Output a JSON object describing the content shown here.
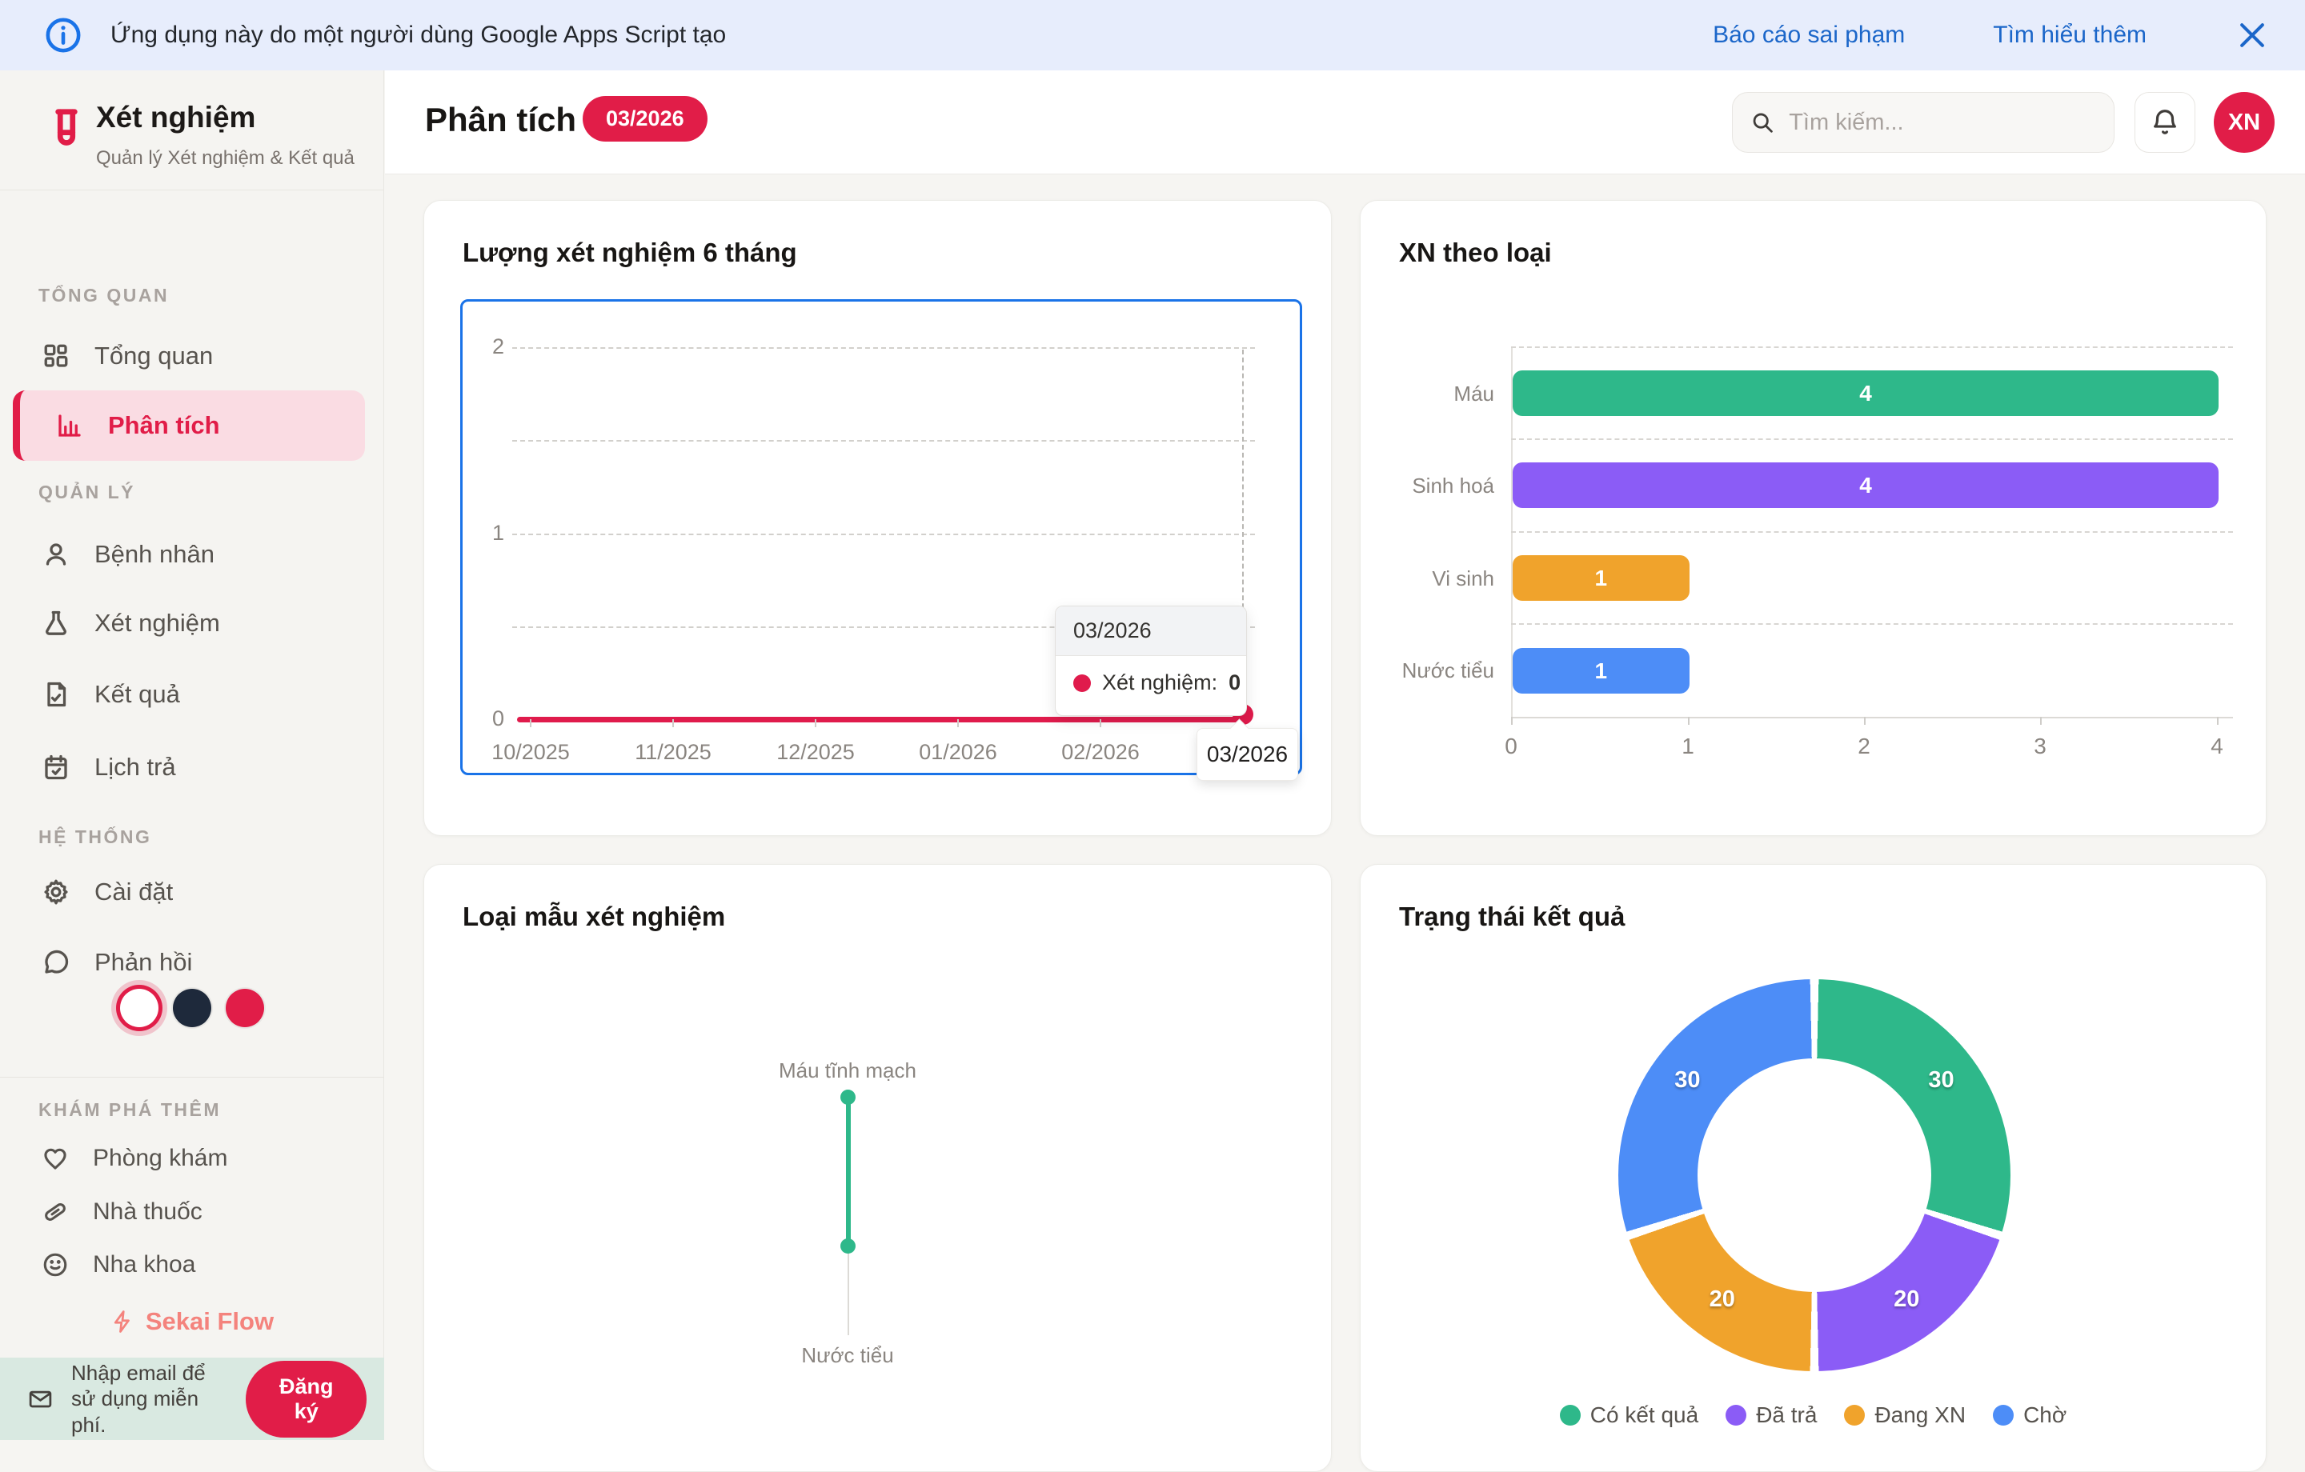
{
  "banner": {
    "message": "Ứng dụng này do một người dùng Google Apps Script tạo",
    "report_link": "Báo cáo sai phạm",
    "learn_more_link": "Tìm hiểu thêm"
  },
  "sidebar": {
    "app_title": "Xét nghiệm",
    "app_subtitle": "Quản lý Xét nghiệm & Kết quả",
    "section_overview": "TỔNG QUAN",
    "items_overview": [
      {
        "label": "Tổng quan"
      },
      {
        "label": "Phân tích"
      }
    ],
    "section_manage": "QUẢN LÝ",
    "items_manage": [
      {
        "label": "Bệnh nhân"
      },
      {
        "label": "Xét nghiệm"
      },
      {
        "label": "Kết quả"
      },
      {
        "label": "Lịch trả"
      }
    ],
    "section_system": "HỆ THỐNG",
    "items_system": [
      {
        "label": "Cài đặt"
      },
      {
        "label": "Phản hồi"
      }
    ],
    "section_explore": "KHÁM PHÁ THÊM",
    "items_explore": [
      {
        "label": "Phòng khám"
      },
      {
        "label": "Nhà thuốc"
      },
      {
        "label": "Nha khoa"
      }
    ],
    "theme_colors": [
      "#ffffff",
      "#1e293b",
      "#e11d48"
    ],
    "brand_footer": "Sekai Flow",
    "email_cta": "Nhập email để sử dụng miễn phí.",
    "signup_button": "Đăng ký"
  },
  "header": {
    "title": "Phân tích",
    "badge": "03/2026",
    "search_placeholder": "Tìm kiếm...",
    "avatar_initials": "XN"
  },
  "brand_color": "#e11d48",
  "focus_border_color": "#1a73e8",
  "chart_data": [
    {
      "type": "line",
      "title": "Lượng xét nghiệm 6 tháng",
      "x": [
        "10/2025",
        "11/2025",
        "12/2025",
        "01/2026",
        "02/2026",
        "03/2026"
      ],
      "series": [
        {
          "name": "Xét nghiệm",
          "values": [
            0,
            0,
            0,
            0,
            0,
            0
          ],
          "color": "#e01b4c"
        }
      ],
      "ylim": [
        0,
        2
      ],
      "yticks": [
        "2",
        "1",
        "0"
      ],
      "grid": "dashed",
      "hovered_point": {
        "x": "03/2026",
        "series": "Xét nghiệm:",
        "value": "0"
      }
    },
    {
      "type": "bar",
      "title": "XN theo loại",
      "orientation": "horizontal",
      "categories": [
        "Máu",
        "Sinh hoá",
        "Vi sinh",
        "Nước tiểu"
      ],
      "values": [
        4,
        4,
        1,
        1
      ],
      "colors": [
        "#2eb88a",
        "#8b5cf6",
        "#f0a32c",
        "#4d8df7"
      ],
      "xlim": [
        0,
        4
      ],
      "xticks": [
        "0",
        "1",
        "2",
        "3",
        "4"
      ]
    },
    {
      "type": "radar",
      "title": "Loại mẫu xét nghiệm",
      "axes": [
        "Máu tĩnh mạch",
        "Nước tiểu"
      ],
      "values": [
        4,
        1
      ],
      "max": 4,
      "color": "#2eb88a"
    },
    {
      "type": "pie",
      "title": "Trạng thái kết quả",
      "donut": true,
      "labels": [
        "Có kết quả",
        "Đã trả",
        "Đang XN",
        "Chờ"
      ],
      "values": [
        30,
        20,
        20,
        30
      ],
      "colors": [
        "#2eb88a",
        "#8b5cf6",
        "#f0a32c",
        "#4d8df7"
      ],
      "legend_position": "bottom"
    }
  ]
}
